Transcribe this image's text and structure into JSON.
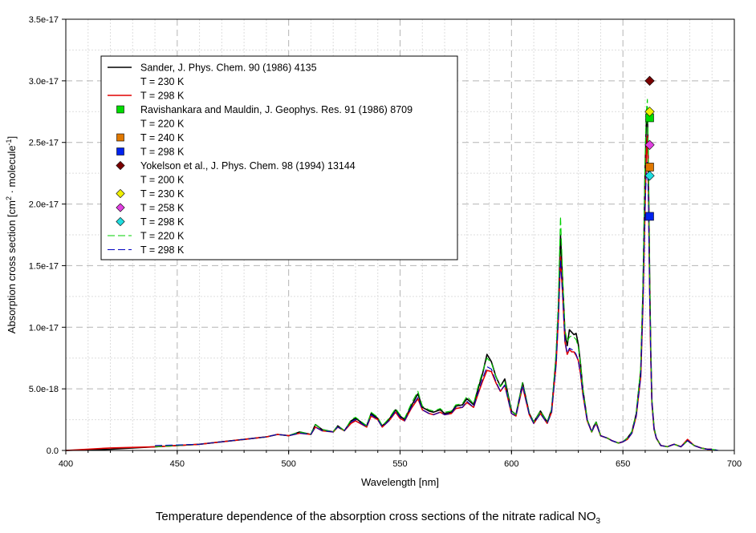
{
  "chart_data": {
    "type": "line",
    "title": "",
    "xlabel": "Wavelength [nm]",
    "ylabel_main": "Absorption cross section [cm",
    "ylabel_sup1": "2",
    "ylabel_mid": " · molecule",
    "ylabel_sup2": "-1",
    "ylabel_end": "]",
    "xlim": [
      400,
      700
    ],
    "ylim": [
      0,
      3.5e-17
    ],
    "x_ticks": [
      400,
      450,
      500,
      550,
      600,
      650,
      700
    ],
    "y_ticks": [
      {
        "value": 0,
        "label": "0.0"
      },
      {
        "value": 5e-18,
        "label": "5.0e-18"
      },
      {
        "value": 1e-17,
        "label": "1.0e-17"
      },
      {
        "value": 1.5e-17,
        "label": "1.5e-17"
      },
      {
        "value": 2e-17,
        "label": "2.0e-17"
      },
      {
        "value": 2.5e-17,
        "label": "2.5e-17"
      },
      {
        "value": 3e-17,
        "label": "3.0e-17"
      },
      {
        "value": 3.5e-17,
        "label": "3.5e-17"
      }
    ],
    "grid": true,
    "legend_position": "top-left",
    "units_y": 1e-18,
    "series": [
      {
        "legend_head": "Sander, J. Phys. Chem. 90 (1986) 4135",
        "name": "T = 230 K",
        "color": "#000000",
        "style": "solid",
        "width": 1.6,
        "x": [
          400,
          420,
          440,
          460,
          470,
          480,
          490,
          495,
          500,
          505,
          510,
          512,
          515,
          520,
          522,
          525,
          528,
          530,
          535,
          537,
          540,
          542,
          545,
          548,
          550,
          552,
          555,
          558,
          560,
          563,
          565,
          568,
          570,
          573,
          575,
          578,
          580,
          583,
          585,
          587,
          589,
          591,
          593,
          595,
          597,
          600,
          602,
          605,
          608,
          610,
          613,
          616,
          618,
          620,
          621,
          622,
          623,
          624,
          625,
          626,
          627,
          628,
          629,
          630,
          631,
          632,
          634,
          636,
          637,
          638,
          640,
          643,
          645,
          648,
          650,
          652,
          654,
          656,
          658,
          659,
          660,
          660.5,
          661,
          661.5,
          662,
          662.5,
          663,
          664,
          665,
          667,
          670,
          673,
          676,
          679,
          682,
          685,
          688,
          690
        ],
        "y": [
          0,
          0.1,
          0.3,
          0.5,
          0.7,
          0.9,
          1.1,
          1.3,
          1.2,
          1.5,
          1.3,
          2.1,
          1.7,
          1.5,
          2.0,
          1.6,
          2.4,
          2.6,
          2.0,
          3.0,
          2.6,
          2.0,
          2.5,
          3.3,
          2.8,
          2.5,
          3.6,
          4.6,
          3.5,
          3.2,
          3.1,
          3.3,
          3.0,
          3.1,
          3.6,
          3.7,
          4.2,
          3.7,
          5.0,
          6.2,
          7.8,
          7.2,
          6.0,
          5.2,
          5.8,
          3.2,
          2.9,
          5.5,
          3.0,
          2.3,
          3.2,
          2.3,
          3.3,
          7.5,
          11.0,
          17.5,
          13.5,
          9.5,
          8.5,
          9.8,
          9.6,
          9.4,
          9.5,
          8.6,
          7.0,
          5.0,
          2.5,
          1.5,
          2.0,
          2.3,
          1.2,
          1.0,
          0.8,
          0.6,
          0.7,
          1.0,
          1.5,
          3.0,
          6.5,
          13.0,
          23.0,
          26.5,
          27.5,
          22.0,
          14.0,
          8.0,
          4.0,
          1.8,
          1.0,
          0.4,
          0.3,
          0.5,
          0.3,
          0.8,
          0.4,
          0.2,
          0.1,
          0.1
        ]
      },
      {
        "name": "T = 298 K",
        "color": "#e00000",
        "style": "solid",
        "width": 1.6,
        "x": [
          400,
          420,
          440,
          460,
          470,
          480,
          490,
          495,
          500,
          505,
          510,
          512,
          515,
          520,
          522,
          525,
          528,
          530,
          535,
          537,
          540,
          542,
          545,
          548,
          550,
          552,
          555,
          558,
          560,
          563,
          565,
          568,
          570,
          573,
          575,
          578,
          580,
          583,
          585,
          587,
          589,
          591,
          593,
          595,
          597,
          600,
          602,
          605,
          608,
          610,
          613,
          616,
          618,
          620,
          621,
          622,
          623,
          624,
          625,
          626,
          627,
          628,
          629,
          630,
          631,
          632,
          634,
          636,
          637,
          638,
          640,
          643,
          645,
          648,
          650,
          652,
          654,
          656,
          658,
          659,
          660,
          660.5,
          661,
          661.5,
          662,
          662.5,
          663,
          664,
          665,
          667,
          670,
          673,
          676,
          679,
          682,
          685,
          688,
          690
        ],
        "y": [
          0,
          0.2,
          0.3,
          0.5,
          0.7,
          0.9,
          1.1,
          1.3,
          1.2,
          1.4,
          1.3,
          1.9,
          1.6,
          1.5,
          1.9,
          1.6,
          2.2,
          2.4,
          1.9,
          2.8,
          2.5,
          1.9,
          2.4,
          3.1,
          2.6,
          2.4,
          3.4,
          4.2,
          3.3,
          3.0,
          2.9,
          3.1,
          2.9,
          3.0,
          3.4,
          3.5,
          3.9,
          3.5,
          4.6,
          5.6,
          6.5,
          6.4,
          5.5,
          4.8,
          5.3,
          3.0,
          2.8,
          5.2,
          2.9,
          2.2,
          3.0,
          2.2,
          3.1,
          7.0,
          10.5,
          15.7,
          12.5,
          8.8,
          7.8,
          8.2,
          8.0,
          8.0,
          7.7,
          7.3,
          6.2,
          4.6,
          2.4,
          1.5,
          1.9,
          2.2,
          1.2,
          1.0,
          0.8,
          0.6,
          0.7,
          0.9,
          1.4,
          2.8,
          6.0,
          12.0,
          20.0,
          24.0,
          25.5,
          20.5,
          13.0,
          7.5,
          3.8,
          1.7,
          1.0,
          0.4,
          0.3,
          0.5,
          0.3,
          0.9,
          0.4,
          0.2,
          0.1,
          0.1
        ]
      },
      {
        "name": "T = 220 K",
        "color": "#00d000",
        "style": "dash",
        "width": 1.1,
        "x": [
          440,
          460,
          470,
          480,
          490,
          495,
          500,
          505,
          510,
          512,
          515,
          520,
          522,
          525,
          528,
          530,
          535,
          537,
          540,
          542,
          545,
          548,
          550,
          552,
          555,
          558,
          560,
          563,
          565,
          568,
          570,
          573,
          575,
          578,
          580,
          583,
          585,
          587,
          589,
          591,
          593,
          595,
          597,
          600,
          602,
          605,
          608,
          610,
          613,
          616,
          618,
          620,
          621,
          622,
          623,
          624,
          625,
          626,
          627,
          628,
          629,
          630,
          631,
          632,
          634,
          636,
          637,
          638,
          640,
          643,
          645,
          648,
          650,
          652,
          654,
          656,
          658,
          659,
          660,
          660.5,
          661,
          661.5,
          662,
          662.5,
          663,
          664,
          665,
          667,
          670,
          673,
          676,
          679,
          682,
          685,
          688,
          690,
          693
        ],
        "y": [
          0.3,
          0.5,
          0.7,
          0.9,
          1.1,
          1.3,
          1.2,
          1.5,
          1.3,
          2.1,
          1.7,
          1.5,
          2.0,
          1.6,
          2.5,
          2.7,
          2.0,
          3.1,
          2.7,
          2.0,
          2.6,
          3.4,
          2.9,
          2.6,
          3.8,
          4.8,
          3.6,
          3.3,
          3.2,
          3.4,
          3.1,
          3.2,
          3.7,
          3.8,
          4.4,
          3.8,
          5.2,
          6.4,
          7.5,
          7.1,
          6.0,
          5.2,
          5.6,
          3.2,
          2.9,
          5.5,
          3.0,
          2.3,
          3.2,
          2.3,
          3.3,
          8.0,
          12.0,
          19.0,
          14.0,
          9.8,
          8.8,
          9.2,
          9.3,
          9.2,
          9.0,
          8.4,
          7.0,
          5.0,
          2.5,
          1.5,
          2.0,
          2.3,
          1.2,
          1.0,
          0.8,
          0.6,
          0.7,
          1.0,
          1.5,
          3.0,
          6.8,
          13.5,
          24.0,
          27.5,
          28.5,
          23.0,
          14.5,
          8.2,
          4.0,
          1.8,
          1.0,
          0.4,
          0.3,
          0.5,
          0.3,
          0.8,
          0.4,
          0.2,
          0.1,
          0.1,
          0.0
        ]
      },
      {
        "name": "T = 298 K",
        "color": "#0000c0",
        "style": "dash",
        "width": 1.1,
        "x": [
          440,
          460,
          470,
          480,
          490,
          495,
          500,
          505,
          510,
          512,
          515,
          520,
          522,
          525,
          528,
          530,
          535,
          537,
          540,
          542,
          545,
          548,
          550,
          552,
          555,
          558,
          560,
          563,
          565,
          568,
          570,
          573,
          575,
          578,
          580,
          583,
          585,
          587,
          589,
          591,
          593,
          595,
          597,
          600,
          602,
          605,
          608,
          610,
          613,
          616,
          618,
          620,
          621,
          622,
          623,
          624,
          625,
          626,
          627,
          628,
          629,
          630,
          631,
          632,
          634,
          636,
          637,
          638,
          640,
          643,
          645,
          648,
          650,
          652,
          654,
          656,
          658,
          659,
          660,
          660.5,
          661,
          661.5,
          662,
          662.5,
          663,
          664,
          665,
          667,
          670,
          673,
          676,
          679,
          682,
          685,
          688,
          690,
          693
        ],
        "y": [
          0.4,
          0.5,
          0.7,
          0.9,
          1.1,
          1.3,
          1.2,
          1.4,
          1.3,
          1.9,
          1.6,
          1.5,
          1.9,
          1.6,
          2.3,
          2.5,
          1.9,
          2.9,
          2.5,
          1.9,
          2.4,
          3.2,
          2.7,
          2.4,
          3.5,
          4.3,
          3.3,
          3.0,
          2.9,
          3.1,
          2.9,
          3.0,
          3.5,
          3.5,
          4.0,
          3.5,
          4.7,
          5.8,
          6.8,
          6.6,
          5.6,
          4.8,
          5.3,
          3.0,
          2.8,
          5.3,
          2.9,
          2.2,
          3.0,
          2.2,
          3.1,
          7.0,
          10.5,
          15.5,
          12.5,
          8.8,
          7.9,
          8.3,
          8.2,
          8.1,
          7.8,
          7.3,
          6.2,
          4.6,
          2.4,
          1.5,
          1.9,
          2.2,
          1.2,
          1.0,
          0.8,
          0.6,
          0.7,
          0.9,
          1.4,
          2.8,
          6.0,
          12.0,
          20.0,
          22.5,
          23.5,
          19.5,
          12.5,
          7.5,
          3.8,
          1.7,
          1.0,
          0.4,
          0.3,
          0.5,
          0.3,
          0.8,
          0.4,
          0.2,
          0.1,
          0.1,
          0.0
        ]
      }
    ],
    "markers": [
      {
        "group_head": "Ravishankara and Mauldin, J. Geophys. Res. 91 (1986) 8709",
        "name": "T = 220 K",
        "shape": "square",
        "color": "#00dd00",
        "x": 662,
        "y": 2.7e-17
      },
      {
        "name": "T = 240 K",
        "shape": "square",
        "color": "#e07800",
        "x": 662,
        "y": 2.3e-17
      },
      {
        "name": "T = 298 K",
        "shape": "square",
        "color": "#0022ee",
        "x": 662,
        "y": 1.9e-17
      },
      {
        "group_head": "Yokelson et al., J. Phys. Chem. 98 (1994) 13144",
        "name": "T = 200 K",
        "shape": "diamond",
        "color": "#7a0000",
        "x": 662,
        "y": 3e-17
      },
      {
        "name": "T = 230 K",
        "shape": "diamond",
        "color": "#f0f000",
        "x": 662,
        "y": 2.75e-17
      },
      {
        "name": "T = 258 K",
        "shape": "diamond",
        "color": "#e040e0",
        "x": 662,
        "y": 2.48e-17
      },
      {
        "name": "T = 298 K",
        "shape": "diamond",
        "color": "#20dde0",
        "x": 662,
        "y": 2.23e-17
      }
    ],
    "legend_order": [
      {
        "kind": "line",
        "ref": 0,
        "text": "Sander, J. Phys. Chem. 90 (1986) 4135"
      },
      {
        "kind": "none",
        "text": "T = 230 K"
      },
      {
        "kind": "line",
        "ref": 1,
        "text": "T = 298 K"
      },
      {
        "kind": "marker",
        "ref": 0,
        "text": "Ravishankara and Mauldin, J. Geophys. Res. 91 (1986) 8709"
      },
      {
        "kind": "none",
        "text": "T = 220 K"
      },
      {
        "kind": "marker",
        "ref": 1,
        "text": "T = 240 K"
      },
      {
        "kind": "marker",
        "ref": 2,
        "text": "T = 298 K"
      },
      {
        "kind": "marker",
        "ref": 3,
        "text": "Yokelson et al., J. Phys. Chem. 98 (1994) 13144"
      },
      {
        "kind": "none",
        "text": "T = 200 K"
      },
      {
        "kind": "marker",
        "ref": 4,
        "text": "T = 230 K"
      },
      {
        "kind": "marker",
        "ref": 5,
        "text": "T = 258 K"
      },
      {
        "kind": "marker",
        "ref": 6,
        "text": "T = 298 K"
      },
      {
        "kind": "line",
        "ref": 2,
        "text": "T = 220 K"
      },
      {
        "kind": "line",
        "ref": 3,
        "text": "T = 298 K"
      }
    ]
  },
  "caption": {
    "text": "Temperature dependence of the absorption cross sections of the nitrate radical NO",
    "sub": "3"
  }
}
